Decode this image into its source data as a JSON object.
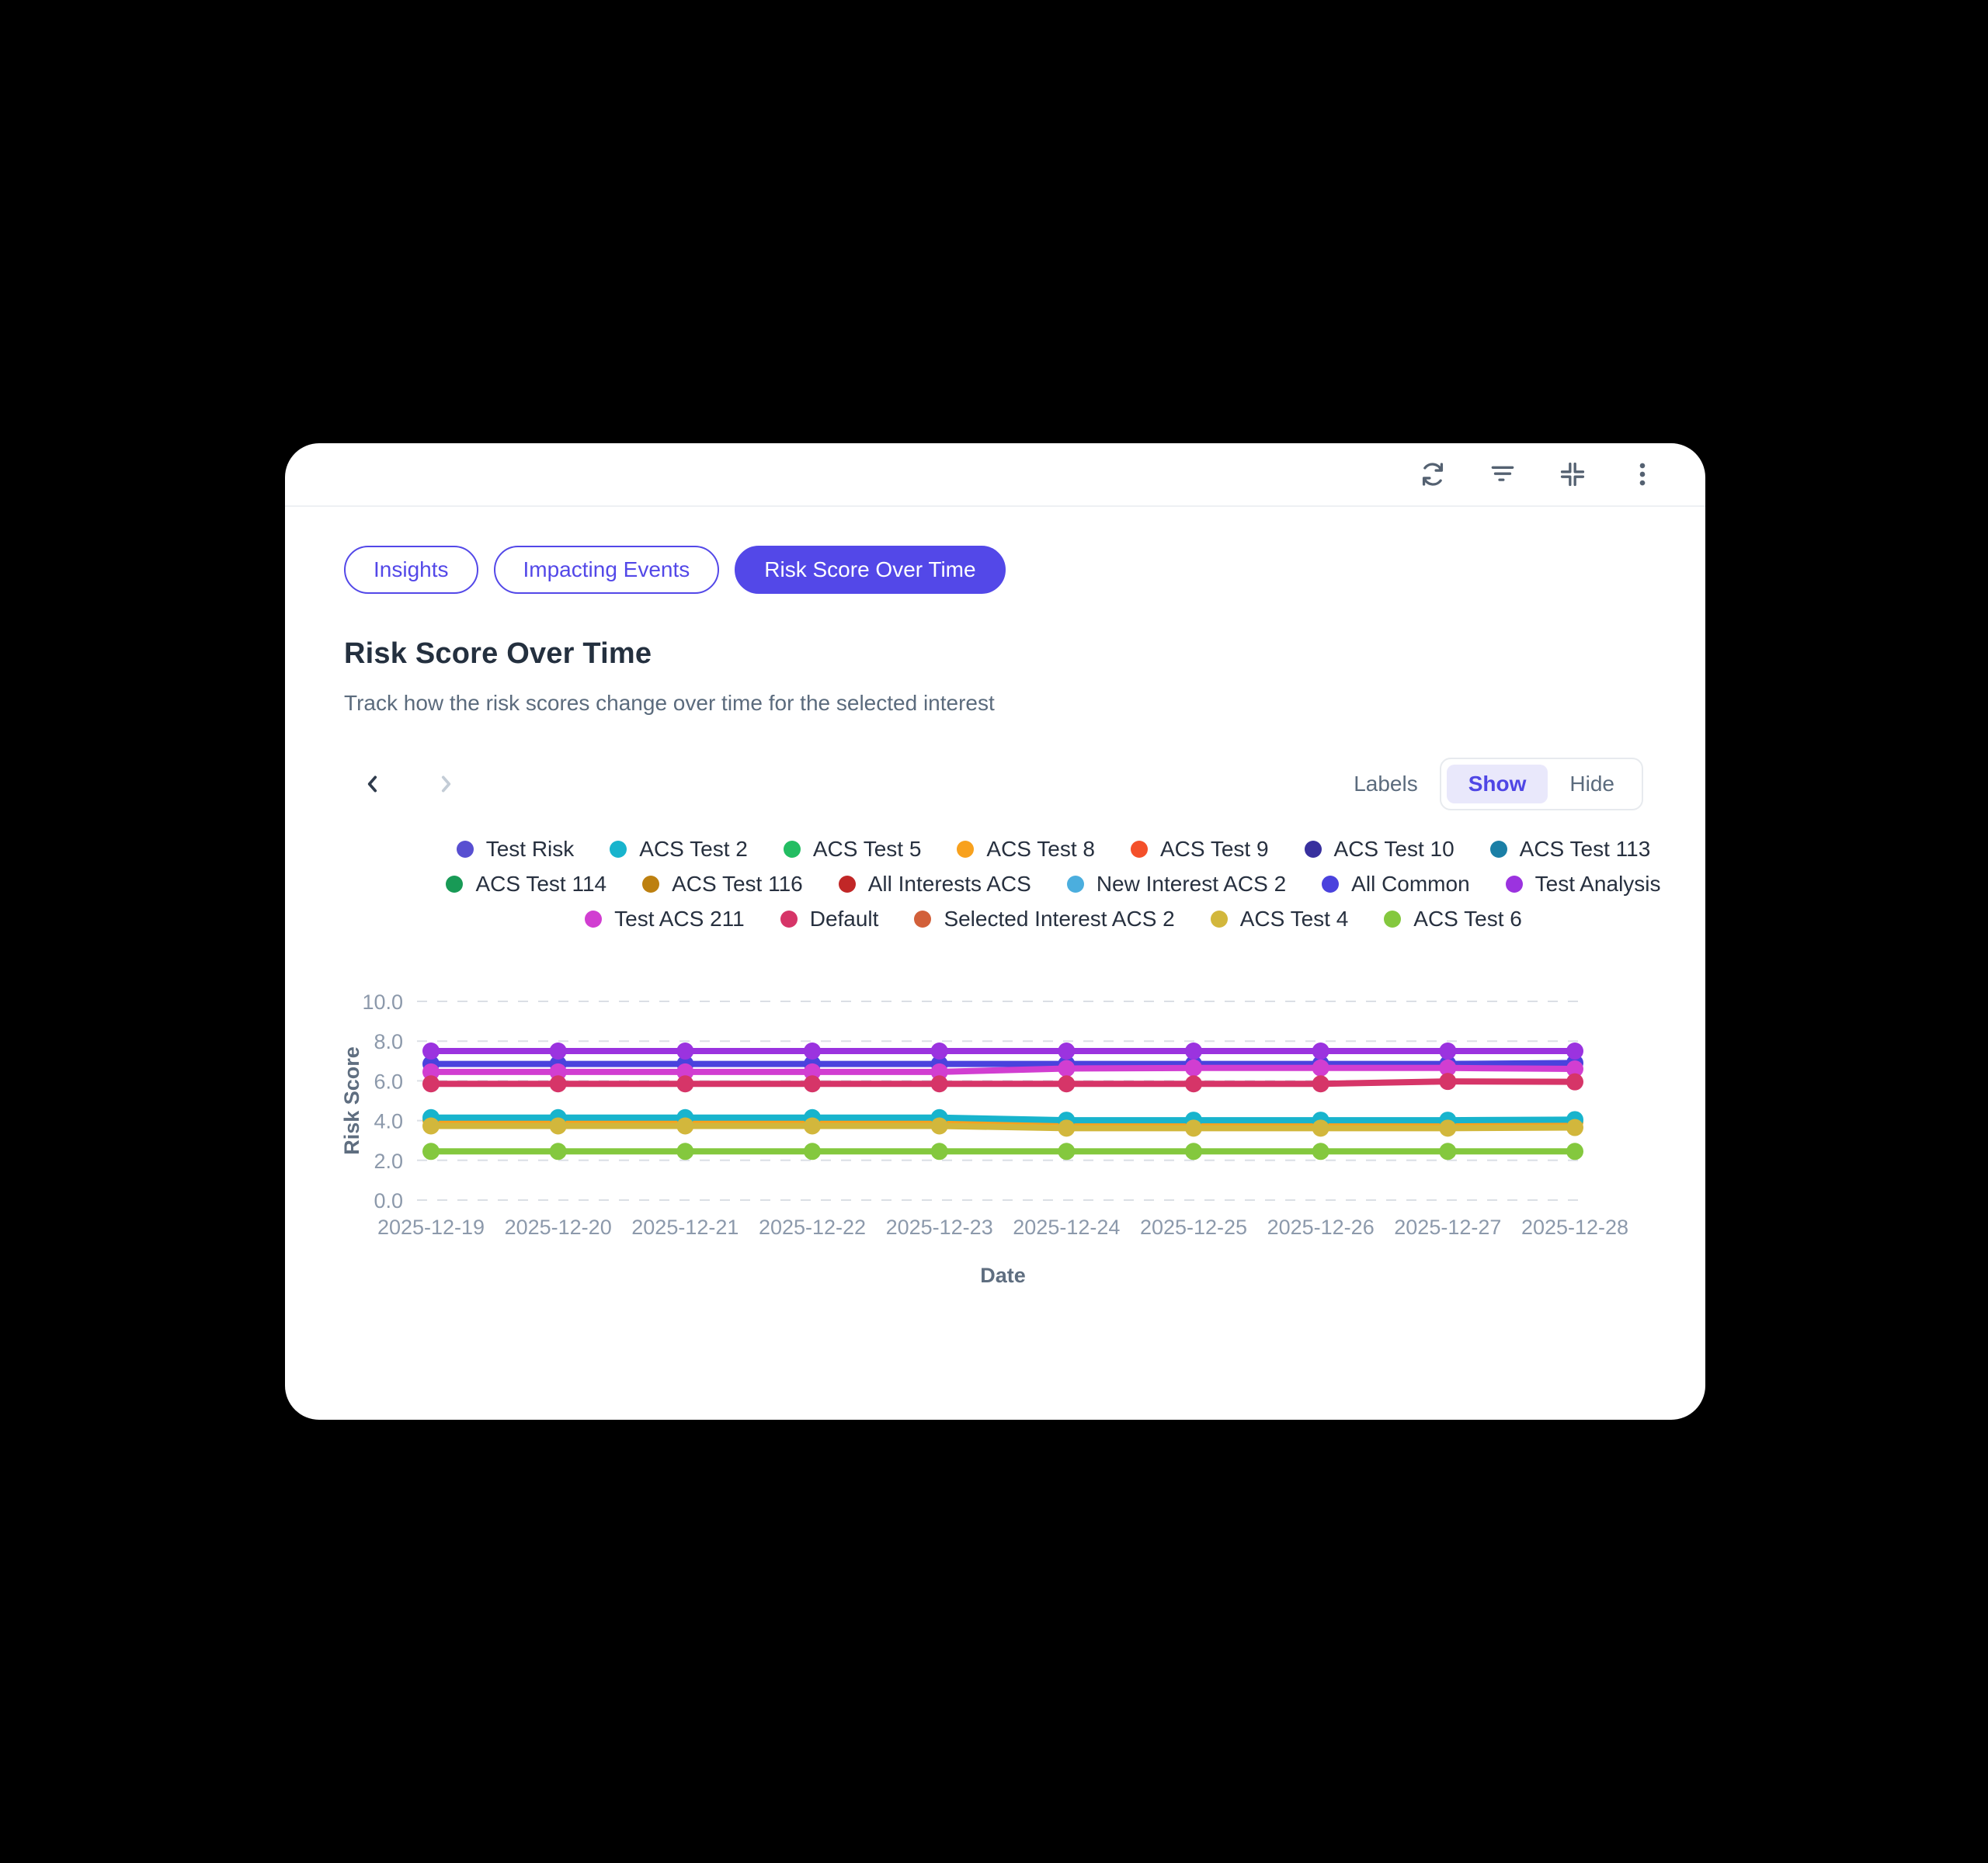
{
  "toolbar": {
    "icons": [
      "refresh-icon",
      "filter-icon",
      "collapse-icon",
      "kebab-menu-icon"
    ]
  },
  "tabs": [
    {
      "label": "Insights",
      "active": false
    },
    {
      "label": "Impacting Events",
      "active": false
    },
    {
      "label": "Risk Score Over Time",
      "active": true
    }
  ],
  "header": {
    "title": "Risk Score Over Time",
    "subtitle": "Track how the risk scores change over time for the selected interest"
  },
  "controls": {
    "labels_label": "Labels",
    "show_label": "Show",
    "hide_label": "Hide",
    "selected": "Show"
  },
  "legend_rows": [
    [
      {
        "name": "Test Risk",
        "color": "#584fd1"
      },
      {
        "name": "ACS Test 2",
        "color": "#18b4cd"
      },
      {
        "name": "ACS Test 5",
        "color": "#23bd62"
      },
      {
        "name": "ACS Test 8",
        "color": "#f8a11d"
      },
      {
        "name": "ACS Test 9",
        "color": "#f4502a"
      },
      {
        "name": "ACS Test 10",
        "color": "#38309e"
      },
      {
        "name": "ACS Test 113",
        "color": "#1b7fa6"
      }
    ],
    [
      {
        "name": "ACS Test 114",
        "color": "#189a56"
      },
      {
        "name": "ACS Test 116",
        "color": "#bd8010"
      },
      {
        "name": "All Interests ACS",
        "color": "#c12727"
      },
      {
        "name": "New Interest ACS 2",
        "color": "#4baede"
      },
      {
        "name": "All Common",
        "color": "#4a42dd"
      },
      {
        "name": "Test Analysis",
        "color": "#9b33df"
      }
    ],
    [
      {
        "name": "Test ACS 211",
        "color": "#d13ed1"
      },
      {
        "name": "Default",
        "color": "#d63568"
      },
      {
        "name": "Selected Interest ACS 2",
        "color": "#d2603a"
      },
      {
        "name": "ACS Test 4",
        "color": "#d2b73c"
      },
      {
        "name": "ACS Test 6",
        "color": "#84c83e"
      }
    ]
  ],
  "chart_data": {
    "type": "line",
    "title": "Risk Score Over Time",
    "xlabel": "Date",
    "ylabel": "Risk Score",
    "categories": [
      "2025-12-19",
      "2025-12-20",
      "2025-12-21",
      "2025-12-22",
      "2025-12-23",
      "2025-12-24",
      "2025-12-25",
      "2025-12-26",
      "2025-12-27",
      "2025-12-28"
    ],
    "ylim": [
      0,
      10
    ],
    "yticks": [
      10,
      8,
      6,
      4,
      2,
      0
    ],
    "ytick_labels": [
      "10.0",
      "8.0",
      "6.0",
      "4.0",
      "2.0",
      "0.0"
    ],
    "grid": "horizontal-dashed",
    "legend_position": "top",
    "series": [
      {
        "name": "All Common",
        "color": "#4a42dd",
        "values": [
          6.85,
          6.85,
          6.85,
          6.85,
          6.85,
          6.85,
          6.85,
          6.85,
          6.85,
          6.9
        ]
      },
      {
        "name": "Test Analysis",
        "color": "#9b33df",
        "values": [
          7.5,
          7.5,
          7.5,
          7.5,
          7.5,
          7.5,
          7.5,
          7.5,
          7.5,
          7.5
        ]
      },
      {
        "name": "Test ACS 211",
        "color": "#d13ed1",
        "values": [
          6.45,
          6.45,
          6.45,
          6.45,
          6.45,
          6.62,
          6.65,
          6.65,
          6.65,
          6.6
        ]
      },
      {
        "name": "Default",
        "color": "#d63568",
        "values": [
          5.85,
          5.85,
          5.85,
          5.85,
          5.85,
          5.85,
          5.85,
          5.85,
          5.97,
          5.95
        ]
      },
      {
        "name": "ACS Test 8",
        "color": "#f8a11d",
        "values": [
          4.03,
          4.03,
          4.03,
          4.03,
          4.03,
          3.92,
          3.92,
          3.92,
          3.92,
          3.93
        ]
      },
      {
        "name": "ACS Test 2",
        "color": "#18b4cd",
        "values": [
          4.15,
          4.15,
          4.15,
          4.15,
          4.15,
          4.02,
          4.02,
          4.02,
          4.02,
          4.05
        ]
      },
      {
        "name": "ACS Test 4",
        "color": "#d2b73c",
        "values": [
          3.73,
          3.73,
          3.73,
          3.73,
          3.73,
          3.62,
          3.62,
          3.62,
          3.62,
          3.65
        ]
      },
      {
        "name": "ACS Test 6",
        "color": "#84c83e",
        "values": [
          2.45,
          2.45,
          2.45,
          2.45,
          2.45,
          2.45,
          2.45,
          2.45,
          2.45,
          2.45
        ]
      }
    ]
  },
  "colors": {
    "accent": "#5348e8",
    "card_bg": "#ffffff",
    "page_bg": "#000000",
    "grid_line": "#dbdfe5"
  }
}
